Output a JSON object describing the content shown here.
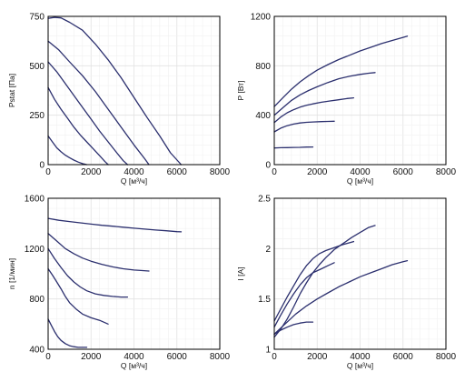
{
  "colors": {
    "curve": "#2b2f6e",
    "frame": "#000000",
    "grid": "#e2e2e2"
  },
  "chart_data": [
    {
      "type": "line",
      "xlabel": "Q [м³/ч]",
      "ylabel": "Pstat [Па]",
      "xlim": [
        0,
        8000
      ],
      "ylim": [
        0,
        750
      ],
      "xticks": [
        "0",
        "2000",
        "4000",
        "6000",
        "8000"
      ],
      "yticks": [
        "0",
        "250",
        "500",
        "750"
      ],
      "grid": true,
      "series": [
        {
          "points": [
            [
              0,
              740
            ],
            [
              300,
              745
            ],
            [
              600,
              742
            ],
            [
              1000,
              720
            ],
            [
              1600,
              680
            ],
            [
              2200,
              610
            ],
            [
              2800,
              530
            ],
            [
              3400,
              440
            ],
            [
              4000,
              340
            ],
            [
              4600,
              240
            ],
            [
              5200,
              145
            ],
            [
              5700,
              60
            ],
            [
              6200,
              0
            ]
          ]
        },
        {
          "points": [
            [
              0,
              625
            ],
            [
              500,
              580
            ],
            [
              1000,
              520
            ],
            [
              1600,
              450
            ],
            [
              2200,
              370
            ],
            [
              2800,
              280
            ],
            [
              3400,
              190
            ],
            [
              4000,
              100
            ],
            [
              4500,
              30
            ],
            [
              4700,
              0
            ]
          ]
        },
        {
          "points": [
            [
              0,
              520
            ],
            [
              400,
              470
            ],
            [
              800,
              410
            ],
            [
              1200,
              350
            ],
            [
              1600,
              290
            ],
            [
              2000,
              230
            ],
            [
              2400,
              170
            ],
            [
              2800,
              115
            ],
            [
              3200,
              60
            ],
            [
              3500,
              20
            ],
            [
              3700,
              0
            ]
          ]
        },
        {
          "points": [
            [
              0,
              390
            ],
            [
              300,
              330
            ],
            [
              600,
              280
            ],
            [
              900,
              235
            ],
            [
              1200,
              190
            ],
            [
              1500,
              150
            ],
            [
              1800,
              115
            ],
            [
              2100,
              80
            ],
            [
              2400,
              45
            ],
            [
              2650,
              15
            ],
            [
              2800,
              0
            ]
          ]
        },
        {
          "points": [
            [
              0,
              145
            ],
            [
              200,
              115
            ],
            [
              400,
              85
            ],
            [
              600,
              65
            ],
            [
              800,
              48
            ],
            [
              1000,
              35
            ],
            [
              1200,
              23
            ],
            [
              1400,
              13
            ],
            [
              1600,
              5
            ],
            [
              1800,
              0
            ]
          ]
        }
      ]
    },
    {
      "type": "line",
      "xlabel": "Q [м³/ч]",
      "ylabel": "P [Вт]",
      "xlim": [
        0,
        8000
      ],
      "ylim": [
        0,
        1200
      ],
      "xticks": [
        "0",
        "2000",
        "4000",
        "6000",
        "8000"
      ],
      "yticks": [
        "0",
        "400",
        "800",
        "1200"
      ],
      "grid": true,
      "series": [
        {
          "points": [
            [
              0,
              470
            ],
            [
              400,
              540
            ],
            [
              800,
              610
            ],
            [
              1200,
              670
            ],
            [
              1600,
              720
            ],
            [
              2000,
              765
            ],
            [
              2500,
              810
            ],
            [
              3000,
              850
            ],
            [
              3500,
              885
            ],
            [
              4000,
              920
            ],
            [
              4500,
              950
            ],
            [
              5000,
              980
            ],
            [
              5500,
              1005
            ],
            [
              6000,
              1030
            ],
            [
              6200,
              1040
            ]
          ]
        },
        {
          "points": [
            [
              0,
              400
            ],
            [
              400,
              460
            ],
            [
              800,
              520
            ],
            [
              1200,
              565
            ],
            [
              1600,
              600
            ],
            [
              2000,
              630
            ],
            [
              2500,
              665
            ],
            [
              3000,
              695
            ],
            [
              3500,
              715
            ],
            [
              4000,
              730
            ],
            [
              4400,
              740
            ],
            [
              4700,
              745
            ]
          ]
        },
        {
          "points": [
            [
              0,
              340
            ],
            [
              300,
              385
            ],
            [
              600,
              420
            ],
            [
              900,
              445
            ],
            [
              1200,
              465
            ],
            [
              1500,
              480
            ],
            [
              1800,
              492
            ],
            [
              2200,
              505
            ],
            [
              2600,
              515
            ],
            [
              3000,
              525
            ],
            [
              3400,
              535
            ],
            [
              3700,
              540
            ]
          ]
        },
        {
          "points": [
            [
              0,
              265
            ],
            [
              300,
              295
            ],
            [
              600,
              315
            ],
            [
              900,
              328
            ],
            [
              1200,
              337
            ],
            [
              1500,
              342
            ],
            [
              1800,
              345
            ],
            [
              2200,
              348
            ],
            [
              2500,
              350
            ],
            [
              2800,
              351
            ]
          ]
        },
        {
          "points": [
            [
              0,
              135
            ],
            [
              300,
              137
            ],
            [
              600,
              138
            ],
            [
              900,
              139
            ],
            [
              1200,
              140
            ],
            [
              1500,
              142
            ],
            [
              1800,
              143
            ]
          ]
        }
      ]
    },
    {
      "type": "line",
      "xlabel": "Q [м³/ч]",
      "ylabel": "n [1/мин]",
      "xlim": [
        0,
        8000
      ],
      "ylim": [
        400,
        1600
      ],
      "xticks": [
        "0",
        "2000",
        "4000",
        "6000",
        "8000"
      ],
      "yticks": [
        "400",
        "800",
        "1200",
        "1600"
      ],
      "grid": true,
      "series": [
        {
          "points": [
            [
              0,
              1440
            ],
            [
              500,
              1425
            ],
            [
              1000,
              1415
            ],
            [
              1500,
              1405
            ],
            [
              2000,
              1395
            ],
            [
              2500,
              1385
            ],
            [
              3000,
              1378
            ],
            [
              3500,
              1370
            ],
            [
              4000,
              1362
            ],
            [
              4500,
              1355
            ],
            [
              5000,
              1348
            ],
            [
              5500,
              1342
            ],
            [
              6000,
              1335
            ],
            [
              6200,
              1333
            ]
          ]
        },
        {
          "points": [
            [
              0,
              1320
            ],
            [
              400,
              1260
            ],
            [
              800,
              1200
            ],
            [
              1200,
              1160
            ],
            [
              1600,
              1125
            ],
            [
              2000,
              1100
            ],
            [
              2500,
              1075
            ],
            [
              3000,
              1055
            ],
            [
              3500,
              1040
            ],
            [
              4000,
              1030
            ],
            [
              4400,
              1025
            ],
            [
              4700,
              1022
            ]
          ]
        },
        {
          "points": [
            [
              0,
              1200
            ],
            [
              300,
              1120
            ],
            [
              600,
              1050
            ],
            [
              900,
              985
            ],
            [
              1200,
              935
            ],
            [
              1500,
              895
            ],
            [
              1800,
              865
            ],
            [
              2200,
              840
            ],
            [
              2600,
              828
            ],
            [
              3000,
              820
            ],
            [
              3400,
              815
            ],
            [
              3700,
              815
            ]
          ]
        },
        {
          "points": [
            [
              0,
              1040
            ],
            [
              200,
              990
            ],
            [
              400,
              935
            ],
            [
              600,
              880
            ],
            [
              800,
              820
            ],
            [
              1000,
              770
            ],
            [
              1300,
              720
            ],
            [
              1600,
              680
            ],
            [
              2000,
              650
            ],
            [
              2400,
              630
            ],
            [
              2800,
              600
            ]
          ]
        },
        {
          "points": [
            [
              0,
              640
            ],
            [
              150,
              590
            ],
            [
              300,
              540
            ],
            [
              450,
              500
            ],
            [
              600,
              470
            ],
            [
              800,
              445
            ],
            [
              1000,
              428
            ],
            [
              1200,
              420
            ],
            [
              1400,
              415
            ],
            [
              1600,
              415
            ],
            [
              1800,
              415
            ]
          ]
        }
      ]
    },
    {
      "type": "line",
      "xlabel": "Q [м³/ч]",
      "ylabel": "I [A]",
      "xlim": [
        0,
        8000
      ],
      "ylim": [
        1,
        2.5
      ],
      "xticks": [
        "0",
        "2000",
        "4000",
        "6000",
        "8000"
      ],
      "yticks": [
        "1",
        "1.5",
        "2",
        "2.5"
      ],
      "grid": true,
      "series": [
        {
          "points": [
            [
              0,
              1.15
            ],
            [
              500,
              1.25
            ],
            [
              1000,
              1.35
            ],
            [
              1500,
              1.43
            ],
            [
              2000,
              1.5
            ],
            [
              2500,
              1.56
            ],
            [
              3000,
              1.62
            ],
            [
              3500,
              1.67
            ],
            [
              4000,
              1.72
            ],
            [
              4500,
              1.76
            ],
            [
              5000,
              1.8
            ],
            [
              5500,
              1.84
            ],
            [
              6000,
              1.87
            ],
            [
              6200,
              1.88
            ]
          ]
        },
        {
          "points": [
            [
              0,
              1.12
            ],
            [
              300,
              1.2
            ],
            [
              600,
              1.3
            ],
            [
              900,
              1.42
            ],
            [
              1200,
              1.55
            ],
            [
              1500,
              1.66
            ],
            [
              1800,
              1.76
            ],
            [
              2100,
              1.84
            ],
            [
              2400,
              1.91
            ],
            [
              2800,
              1.99
            ],
            [
              3200,
              2.05
            ],
            [
              3600,
              2.11
            ],
            [
              4000,
              2.16
            ],
            [
              4400,
              2.21
            ],
            [
              4700,
              2.23
            ]
          ]
        },
        {
          "points": [
            [
              0,
              1.28
            ],
            [
              300,
              1.4
            ],
            [
              600,
              1.52
            ],
            [
              900,
              1.63
            ],
            [
              1200,
              1.74
            ],
            [
              1500,
              1.83
            ],
            [
              1800,
              1.9
            ],
            [
              2100,
              1.95
            ],
            [
              2400,
              1.98
            ],
            [
              2800,
              2.01
            ],
            [
              3200,
              2.04
            ],
            [
              3700,
              2.07
            ]
          ]
        },
        {
          "points": [
            [
              0,
              1.22
            ],
            [
              300,
              1.34
            ],
            [
              600,
              1.45
            ],
            [
              900,
              1.55
            ],
            [
              1200,
              1.64
            ],
            [
              1500,
              1.71
            ],
            [
              1800,
              1.76
            ],
            [
              2200,
              1.8
            ],
            [
              2500,
              1.83
            ],
            [
              2800,
              1.86
            ]
          ]
        },
        {
          "points": [
            [
              0,
              1.15
            ],
            [
              300,
              1.19
            ],
            [
              600,
              1.22
            ],
            [
              900,
              1.245
            ],
            [
              1200,
              1.26
            ],
            [
              1500,
              1.27
            ],
            [
              1800,
              1.27
            ]
          ]
        }
      ]
    }
  ]
}
